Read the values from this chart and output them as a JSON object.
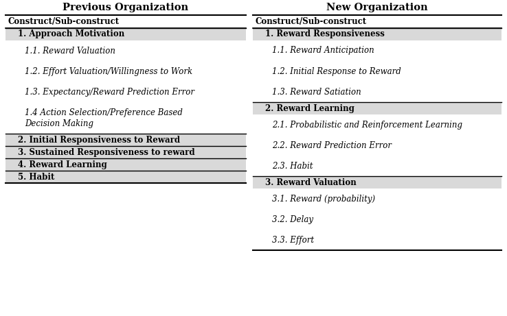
{
  "left_title": "Previous Organization",
  "right_title": "New Organization",
  "left_header": "Construct/Sub-construct",
  "right_header": "Construct/Sub-construct",
  "left_constructs": [
    {
      "label": "1. Approach Motivation",
      "subconstructs": [
        "1.1. Reward Valuation",
        "1.2. Effort Valuation/Willingness to Work",
        "1.3. Expectancy/Reward Prediction Error",
        "1.4 Action Selection/Preference Based\nDecision Making"
      ]
    },
    {
      "label": "2. Initial Responsiveness to Reward",
      "subconstructs": []
    },
    {
      "label": "3. Sustained Responsiveness to reward",
      "subconstructs": []
    },
    {
      "label": "4. Reward Learning",
      "subconstructs": []
    },
    {
      "label": "5. Habit",
      "subconstructs": []
    }
  ],
  "right_constructs": [
    {
      "label": "1. Reward Responsiveness",
      "subconstructs": [
        "1.1. Reward Anticipation",
        "1.2. Initial Response to Reward",
        "1.3. Reward Satiation"
      ]
    },
    {
      "label": "2. Reward Learning",
      "subconstructs": [
        "2.1. Probabilistic and Reinforcement Learning",
        "2.2. Reward Prediction Error",
        "2.3. Habit"
      ]
    },
    {
      "label": "3. Reward Valuation",
      "subconstructs": [
        "3.1. Reward (probability)",
        "3.2. Delay",
        "3.3. Effort"
      ]
    }
  ],
  "bg_color": "#ffffff",
  "construct_bg": "#d9d9d9",
  "title_fontsize": 10.5,
  "header_fontsize": 8.5,
  "construct_fontsize": 8.5,
  "sub_fontsize": 8.5,
  "divider_color": "#000000",
  "text_color": "#000000",
  "font_family": "DejaVu Serif"
}
